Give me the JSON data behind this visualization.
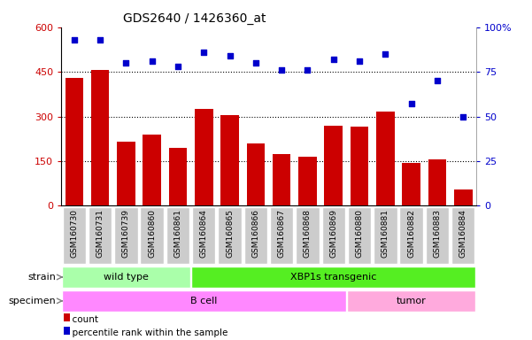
{
  "title": "GDS2640 / 1426360_at",
  "categories": [
    "GSM160730",
    "GSM160731",
    "GSM160739",
    "GSM160860",
    "GSM160861",
    "GSM160864",
    "GSM160865",
    "GSM160866",
    "GSM160867",
    "GSM160868",
    "GSM160869",
    "GSM160880",
    "GSM160881",
    "GSM160882",
    "GSM160883",
    "GSM160884"
  ],
  "counts": [
    430,
    455,
    215,
    240,
    195,
    325,
    305,
    210,
    175,
    165,
    270,
    265,
    315,
    145,
    155,
    55
  ],
  "percentiles": [
    93,
    93,
    80,
    81,
    78,
    86,
    84,
    80,
    76,
    76,
    82,
    81,
    85,
    57,
    70,
    50
  ],
  "ylim_left": [
    0,
    600
  ],
  "ylim_right": [
    0,
    100
  ],
  "yticks_left": [
    0,
    150,
    300,
    450,
    600
  ],
  "yticks_right": [
    0,
    25,
    50,
    75,
    100
  ],
  "bar_color": "#cc0000",
  "dot_color": "#0000cc",
  "strain_groups": [
    {
      "label": "wild type",
      "start": 0,
      "end": 5,
      "color": "#aaffaa"
    },
    {
      "label": "XBP1s transgenic",
      "start": 5,
      "end": 16,
      "color": "#55ee22"
    }
  ],
  "specimen_groups": [
    {
      "label": "B cell",
      "start": 0,
      "end": 11,
      "color": "#ff88ff"
    },
    {
      "label": "tumor",
      "start": 11,
      "end": 16,
      "color": "#ffaadd"
    }
  ],
  "strain_label": "strain",
  "specimen_label": "specimen",
  "legend_count_label": "count",
  "legend_pct_label": "percentile rank within the sample",
  "background_color": "#ffffff",
  "tick_bg_color": "#cccccc"
}
